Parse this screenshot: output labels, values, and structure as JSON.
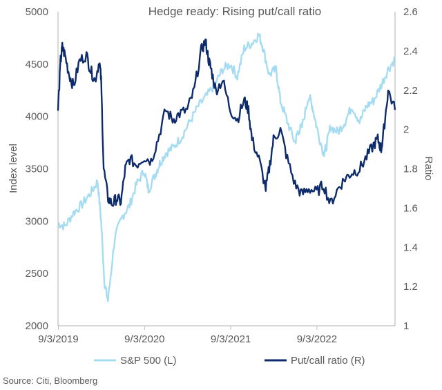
{
  "chart_data": {
    "type": "line",
    "title": "Hedge ready: Rising put/call ratio",
    "ylabel_left": "Index level",
    "ylabel_right": "Ratio",
    "ylim_left": [
      2000,
      5000
    ],
    "ylim_right": [
      1,
      2.6
    ],
    "yticks_left": [
      "5000",
      "4500",
      "4000",
      "3500",
      "3000",
      "2500",
      "2000"
    ],
    "yticks_right": [
      "2.6",
      "2.4",
      "2.2",
      "2",
      "1.8",
      "1.6",
      "1.4",
      "1.2",
      "1"
    ],
    "x_range": [
      "2019-09-03",
      "2023-07-31"
    ],
    "xticks": [
      "9/3/2019",
      "9/3/2020",
      "9/3/2021",
      "9/3/2022"
    ],
    "colors": {
      "sp500": "#a6dcf2",
      "pc": "#0d2a6b",
      "axis": "#bfbfbf"
    },
    "series": [
      {
        "name": "S&P 500 (L)",
        "axis": "left",
        "x": [
          2019.67,
          2019.75,
          2019.85,
          2019.95,
          2020.05,
          2020.13,
          2020.17,
          2020.21,
          2020.25,
          2020.33,
          2020.42,
          2020.5,
          2020.58,
          2020.67,
          2020.72,
          2020.8,
          2020.85,
          2020.92,
          2021.0,
          2021.1,
          2021.2,
          2021.3,
          2021.4,
          2021.5,
          2021.58,
          2021.67,
          2021.75,
          2021.83,
          2021.92,
          2022.0,
          2022.05,
          2022.12,
          2022.2,
          2022.25,
          2022.33,
          2022.42,
          2022.45,
          2022.5,
          2022.58,
          2022.62,
          2022.67,
          2022.75,
          2022.78,
          2022.83,
          2022.92,
          2023.0,
          2023.08,
          2023.17,
          2023.25,
          2023.33,
          2023.42,
          2023.5,
          2023.58
        ],
        "values": [
          2980,
          2950,
          3080,
          3160,
          3270,
          3380,
          3000,
          2400,
          2240,
          2850,
          3050,
          3150,
          3350,
          3480,
          3300,
          3450,
          3550,
          3650,
          3700,
          3800,
          3950,
          4100,
          4200,
          4320,
          4450,
          4500,
          4380,
          4650,
          4700,
          4780,
          4650,
          4400,
          4450,
          4150,
          3950,
          3750,
          3850,
          3900,
          4200,
          4100,
          3900,
          3650,
          3700,
          3900,
          3850,
          3950,
          4100,
          3950,
          4100,
          4150,
          4300,
          4450,
          4550
        ]
      },
      {
        "name": "Put/call ratio (R)",
        "axis": "right",
        "x": [
          2019.67,
          2019.7,
          2019.72,
          2019.75,
          2019.8,
          2019.85,
          2019.92,
          2020.0,
          2020.05,
          2020.1,
          2020.15,
          2020.17,
          2020.2,
          2020.25,
          2020.3,
          2020.35,
          2020.4,
          2020.45,
          2020.5,
          2020.58,
          2020.67,
          2020.75,
          2020.83,
          2020.92,
          2021.0,
          2021.08,
          2021.17,
          2021.25,
          2021.33,
          2021.38,
          2021.42,
          2021.45,
          2021.5,
          2021.58,
          2021.67,
          2021.75,
          2021.83,
          2021.88,
          2021.92,
          2022.0,
          2022.08,
          2022.12,
          2022.17,
          2022.25,
          2022.33,
          2022.42,
          2022.5,
          2022.58,
          2022.67,
          2022.75,
          2022.83,
          2022.92,
          2023.0,
          2023.08,
          2023.17,
          2023.25,
          2023.33,
          2023.38,
          2023.42,
          2023.45,
          2023.5,
          2023.58
        ],
        "values": [
          2.1,
          2.35,
          2.42,
          2.38,
          2.28,
          2.22,
          2.35,
          2.38,
          2.3,
          2.25,
          2.35,
          2.25,
          1.8,
          1.65,
          1.62,
          1.65,
          1.63,
          1.8,
          1.85,
          1.82,
          1.86,
          1.84,
          1.95,
          2.1,
          2.05,
          2.08,
          2.1,
          2.2,
          2.4,
          2.45,
          2.35,
          2.3,
          2.2,
          2.25,
          2.1,
          2.05,
          2.15,
          2.1,
          1.95,
          1.85,
          1.7,
          1.8,
          1.95,
          2.0,
          1.85,
          1.72,
          1.67,
          1.7,
          1.68,
          1.72,
          1.62,
          1.7,
          1.75,
          1.78,
          1.8,
          1.86,
          1.92,
          1.95,
          1.9,
          2.0,
          2.2,
          2.1
        ]
      }
    ]
  },
  "source": "Source: Citi, Bloomberg"
}
